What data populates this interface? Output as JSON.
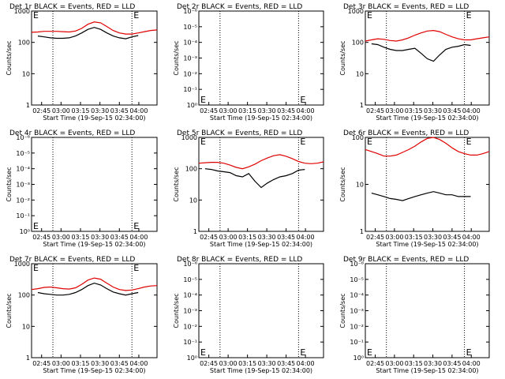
{
  "colors": {
    "events": "#000000",
    "lld": "#e00000"
  },
  "chart_data": [
    {
      "type": "line",
      "title": "Det 1r BLACK = Events, RED = LLD",
      "xlabel": "Start Time (19-Sep-15 02:34:00)",
      "ylabel": "Counts/sec",
      "y_scale": "log",
      "ylim": [
        1,
        1000
      ],
      "y_ticks": [
        "1",
        "10",
        "100",
        "1000"
      ],
      "x_ticks": [
        "02:45",
        "03:00",
        "03:15",
        "03:30",
        "03:45",
        "04:00"
      ],
      "markers": [
        {
          "label": "E"
        },
        {
          "label": "E"
        }
      ],
      "series": [
        {
          "name": "BLACK = Events",
          "color": "black",
          "x": [
            0.05,
            0.1,
            0.15,
            0.2,
            0.25,
            0.3,
            0.35,
            0.4,
            0.45,
            0.5,
            0.55,
            0.6,
            0.65,
            0.7,
            0.75,
            0.8,
            0.85
          ],
          "y": [
            160,
            150,
            140,
            135,
            135,
            140,
            160,
            200,
            260,
            300,
            260,
            200,
            160,
            140,
            130,
            150,
            165
          ]
        },
        {
          "name": "RED = LLD",
          "color": "red",
          "x": [
            0,
            0.05,
            0.1,
            0.15,
            0.2,
            0.25,
            0.3,
            0.35,
            0.4,
            0.45,
            0.5,
            0.55,
            0.6,
            0.65,
            0.7,
            0.75,
            0.8,
            0.85,
            0.9,
            0.95,
            1.0
          ],
          "y": [
            210,
            215,
            225,
            225,
            225,
            220,
            215,
            230,
            280,
            380,
            450,
            420,
            320,
            240,
            200,
            185,
            185,
            200,
            220,
            240,
            250
          ]
        }
      ]
    },
    {
      "type": "line",
      "title": "Det 2r BLACK = Events, RED = LLD",
      "xlabel": "Start Time (19-Sep-15 02:34:00)",
      "ylabel": "Counts/sec",
      "y_scale": "log",
      "y_ticks": [
        "10⁰",
        "10⁻¹",
        "10⁻²",
        "10⁻³",
        "10⁻⁴",
        "10⁻⁵",
        "10⁻⁶"
      ],
      "x_ticks": [
        "02:45",
        "03:00",
        "03:15",
        "03:30",
        "03:45",
        "04:00"
      ],
      "markers": [
        {
          "label": "E"
        },
        {
          "label": "E"
        }
      ],
      "series": []
    },
    {
      "type": "line",
      "title": "Det 3r BLACK = Events, RED = LLD",
      "xlabel": "Start Time (19-Sep-15 02:34:00)",
      "ylabel": "Counts/sec",
      "y_scale": "log",
      "ylim": [
        1,
        1000
      ],
      "y_ticks": [
        "1",
        "10",
        "100",
        "1000"
      ],
      "x_ticks": [
        "02:45",
        "03:00",
        "03:15",
        "03:30",
        "03:45",
        "04:00"
      ],
      "markers": [
        {
          "label": "E"
        },
        {
          "label": "E"
        }
      ],
      "series": [
        {
          "name": "BLACK = Events",
          "color": "black",
          "x": [
            0.05,
            0.1,
            0.15,
            0.2,
            0.25,
            0.3,
            0.35,
            0.4,
            0.45,
            0.5,
            0.55,
            0.6,
            0.65,
            0.7,
            0.75,
            0.8,
            0.85
          ],
          "y": [
            90,
            85,
            70,
            60,
            55,
            55,
            60,
            65,
            45,
            30,
            25,
            40,
            60,
            70,
            75,
            85,
            80
          ]
        },
        {
          "name": "RED = LLD",
          "color": "red",
          "x": [
            0,
            0.05,
            0.1,
            0.15,
            0.2,
            0.25,
            0.3,
            0.35,
            0.4,
            0.45,
            0.5,
            0.55,
            0.6,
            0.65,
            0.7,
            0.75,
            0.8,
            0.85,
            0.9,
            0.95,
            1.0
          ],
          "y": [
            110,
            120,
            130,
            125,
            115,
            110,
            120,
            140,
            170,
            200,
            230,
            240,
            220,
            180,
            150,
            130,
            120,
            120,
            130,
            140,
            150
          ]
        }
      ]
    },
    {
      "type": "line",
      "title": "Det 4r BLACK = Events, RED = LLD",
      "xlabel": "Start Time (19-Sep-15 02:34:00)",
      "ylabel": "Counts/sec",
      "y_scale": "log",
      "y_ticks": [
        "10⁰",
        "10⁻¹",
        "10⁻²",
        "10⁻³",
        "10⁻⁴",
        "10⁻⁵",
        "10⁻⁶"
      ],
      "x_ticks": [
        "02:45",
        "03:00",
        "03:15",
        "03:30",
        "03:45",
        "04:00"
      ],
      "markers": [
        {
          "label": "E"
        },
        {
          "label": "E"
        }
      ],
      "series": []
    },
    {
      "type": "line",
      "title": "Det 5r BLACK = Events, RED = LLD",
      "xlabel": "Start Time (19-Sep-15 02:34:00)",
      "ylabel": "Counts/sec",
      "y_scale": "log",
      "ylim": [
        1,
        1000
      ],
      "y_ticks": [
        "1",
        "10",
        "100",
        "1000"
      ],
      "x_ticks": [
        "02:45",
        "03:00",
        "03:15",
        "03:30",
        "03:45",
        "04:00"
      ],
      "markers": [
        {
          "label": "E"
        },
        {
          "label": "E"
        }
      ],
      "series": [
        {
          "name": "BLACK = Events",
          "color": "black",
          "x": [
            0.05,
            0.1,
            0.15,
            0.2,
            0.25,
            0.3,
            0.35,
            0.4,
            0.45,
            0.5,
            0.55,
            0.6,
            0.65,
            0.7,
            0.75,
            0.8,
            0.85
          ],
          "y": [
            100,
            95,
            85,
            80,
            75,
            60,
            55,
            70,
            40,
            25,
            35,
            45,
            55,
            60,
            70,
            90,
            95
          ]
        },
        {
          "name": "RED = LLD",
          "color": "red",
          "x": [
            0,
            0.05,
            0.1,
            0.15,
            0.2,
            0.25,
            0.3,
            0.35,
            0.4,
            0.45,
            0.5,
            0.55,
            0.6,
            0.65,
            0.7,
            0.75,
            0.8,
            0.85,
            0.9,
            0.95,
            1.0
          ],
          "y": [
            150,
            155,
            160,
            160,
            150,
            130,
            110,
            100,
            115,
            140,
            180,
            220,
            260,
            280,
            250,
            210,
            170,
            150,
            145,
            150,
            165
          ]
        }
      ]
    },
    {
      "type": "line",
      "title": "Det 6r BLACK = Events, RED = LLD",
      "xlabel": "Start Time (19-Sep-15 02:34:00)",
      "ylabel": "Counts/sec",
      "y_scale": "log",
      "ylim": [
        1,
        100
      ],
      "y_ticks": [
        "1",
        "10",
        "100"
      ],
      "x_ticks": [
        "02:45",
        "03:00",
        "03:15",
        "03:30",
        "03:45",
        "04:00"
      ],
      "markers": [
        {
          "label": "E"
        },
        {
          "label": "E"
        }
      ],
      "series": [
        {
          "name": "BLACK = Events",
          "color": "black",
          "x": [
            0.05,
            0.1,
            0.15,
            0.2,
            0.25,
            0.3,
            0.35,
            0.4,
            0.45,
            0.5,
            0.55,
            0.6,
            0.65,
            0.7,
            0.75,
            0.8,
            0.85
          ],
          "y": [
            6.5,
            6,
            5.5,
            5,
            4.8,
            4.5,
            5,
            5.5,
            6,
            6.5,
            7,
            6.5,
            6,
            6,
            5.5,
            5.5,
            5.5
          ]
        },
        {
          "name": "RED = LLD",
          "color": "red",
          "x": [
            0,
            0.05,
            0.1,
            0.15,
            0.2,
            0.25,
            0.3,
            0.35,
            0.4,
            0.45,
            0.5,
            0.55,
            0.6,
            0.65,
            0.7,
            0.75,
            0.8,
            0.85,
            0.9,
            0.95,
            1.0
          ],
          "y": [
            55,
            50,
            45,
            40,
            40,
            42,
            48,
            55,
            65,
            80,
            95,
            100,
            90,
            75,
            60,
            50,
            45,
            42,
            42,
            45,
            50
          ]
        }
      ]
    },
    {
      "type": "line",
      "title": "Det 7r BLACK = Events, RED = LLD",
      "xlabel": "Start Time (19-Sep-15 02:34:00)",
      "ylabel": "Counts/sec",
      "y_scale": "log",
      "ylim": [
        1,
        1000
      ],
      "y_ticks": [
        "1",
        "10",
        "100",
        "1000"
      ],
      "x_ticks": [
        "02:45",
        "03:00",
        "03:15",
        "03:30",
        "03:45",
        "04:00"
      ],
      "markers": [
        {
          "label": "E"
        },
        {
          "label": "E"
        }
      ],
      "series": [
        {
          "name": "BLACK = Events",
          "color": "black",
          "x": [
            0.05,
            0.1,
            0.15,
            0.2,
            0.25,
            0.3,
            0.35,
            0.4,
            0.45,
            0.5,
            0.55,
            0.6,
            0.65,
            0.7,
            0.75,
            0.8,
            0.85
          ],
          "y": [
            120,
            110,
            105,
            100,
            100,
            105,
            120,
            150,
            200,
            240,
            210,
            160,
            125,
            110,
            100,
            110,
            120
          ]
        },
        {
          "name": "RED = LLD",
          "color": "red",
          "x": [
            0,
            0.05,
            0.1,
            0.15,
            0.2,
            0.25,
            0.3,
            0.35,
            0.4,
            0.45,
            0.5,
            0.55,
            0.6,
            0.65,
            0.7,
            0.75,
            0.8,
            0.85,
            0.9,
            0.95,
            1.0
          ],
          "y": [
            150,
            160,
            175,
            180,
            170,
            160,
            155,
            170,
            220,
            300,
            350,
            320,
            240,
            180,
            150,
            140,
            145,
            160,
            180,
            195,
            200
          ]
        }
      ]
    },
    {
      "type": "line",
      "title": "Det 8r BLACK = Events, RED = LLD",
      "xlabel": "Start Time (19-Sep-15 02:34:00)",
      "ylabel": "Counts/sec",
      "y_scale": "log",
      "y_ticks": [
        "10⁰",
        "10⁻¹",
        "10⁻²",
        "10⁻³",
        "10⁻⁴",
        "10⁻⁵",
        "10⁻⁶"
      ],
      "x_ticks": [
        "02:45",
        "03:00",
        "03:15",
        "03:30",
        "03:45",
        "04:00"
      ],
      "markers": [
        {
          "label": "E"
        },
        {
          "label": "E"
        }
      ],
      "series": []
    },
    {
      "type": "line",
      "title": "Det 9r BLACK = Events, RED = LLD",
      "xlabel": "Start Time (19-Sep-15 02:34:00)",
      "ylabel": "Counts/sec",
      "y_scale": "log",
      "y_ticks": [
        "10⁰",
        "10⁻¹",
        "10⁻²",
        "10⁻³",
        "10⁻⁴",
        "10⁻⁵",
        "10⁻⁶"
      ],
      "x_ticks": [
        "02:45",
        "03:00",
        "03:15",
        "03:30",
        "03:45",
        "04:00"
      ],
      "markers": [
        {
          "label": "E"
        },
        {
          "label": "E"
        }
      ],
      "series": []
    }
  ]
}
